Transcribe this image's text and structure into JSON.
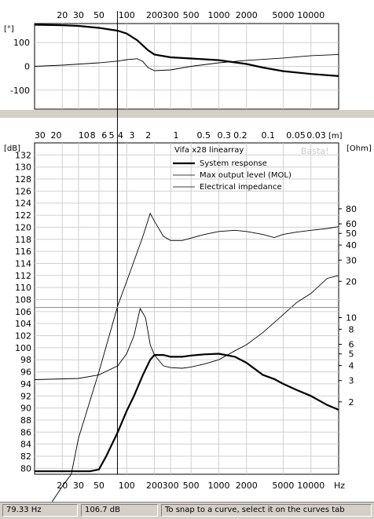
{
  "chart_data": [
    {
      "type": "line",
      "name": "phase",
      "ylabel": "[°]",
      "xscale": "log",
      "xlim": [
        10,
        20000
      ],
      "ylim": [
        -180,
        180
      ],
      "x_ticks": [
        20,
        30,
        50,
        100,
        200,
        300,
        500,
        1000,
        2000,
        5000,
        10000
      ],
      "y_ticks": [
        100,
        0,
        -100
      ],
      "grid": true,
      "series": [
        {
          "style": "thick",
          "x": [
            10,
            20,
            30,
            50,
            80,
            100,
            130,
            170,
            200,
            300,
            500,
            1000,
            2000,
            3000,
            5000,
            10000,
            20000
          ],
          "y": [
            175,
            173,
            170,
            162,
            150,
            138,
            110,
            68,
            50,
            38,
            33,
            26,
            10,
            -5,
            -20,
            -32,
            -41
          ]
        },
        {
          "style": "thin",
          "x": [
            10,
            20,
            50,
            80,
            100,
            130,
            150,
            170,
            200,
            300,
            500,
            1000,
            2000,
            5000,
            10000,
            20000
          ],
          "y": [
            0,
            5,
            15,
            22,
            28,
            32,
            20,
            -5,
            -18,
            -15,
            0,
            15,
            25,
            35,
            45,
            50
          ]
        }
      ]
    },
    {
      "type": "line",
      "name": "magnitude",
      "title": "Vifa x28 linearray",
      "watermark": "Basta!",
      "ylabel": "[dB]",
      "y2label": "[Ohm]",
      "top_axis_label": "[m]",
      "xlabel_unit": "Hz",
      "xscale": "log",
      "xlim": [
        10,
        20000
      ],
      "ylim": [
        79,
        134
      ],
      "x_ticks": [
        20,
        30,
        50,
        100,
        200,
        300,
        500,
        1000,
        2000,
        5000,
        10000
      ],
      "y_ticks": [
        132,
        130,
        128,
        126,
        124,
        122,
        120,
        118,
        116,
        114,
        112,
        110,
        108,
        106,
        104,
        102,
        100,
        98,
        96,
        94,
        92,
        90,
        88,
        86,
        84,
        82,
        80
      ],
      "top_ticks": [
        "30",
        "20",
        "10",
        "8",
        "6",
        "5",
        "4",
        "3",
        "2",
        "1",
        "0.5",
        "0.3",
        "0.2",
        "0.1",
        "0.05",
        "0.03"
      ],
      "y2_ticks": [
        "80",
        "60",
        "50",
        "40",
        "30",
        "20",
        "10",
        "8",
        "6",
        "5",
        "4",
        "3",
        "2"
      ],
      "cursor": {
        "x": 79.33,
        "y": 106.7
      },
      "series": [
        {
          "name": "System response",
          "style": "thick",
          "x": [
            10,
            40,
            50,
            60,
            80,
            100,
            120,
            150,
            180,
            200,
            250,
            300,
            400,
            500,
            700,
            1000,
            1500,
            2000,
            3000,
            4000,
            5000,
            7000,
            10000,
            15000,
            20000
          ],
          "y": [
            79.5,
            79.5,
            79.8,
            82,
            86,
            89.5,
            92,
            95.5,
            98,
            98.8,
            98.8,
            98.5,
            98.5,
            98.7,
            98.9,
            99,
            98.5,
            97.5,
            95.5,
            94.8,
            94,
            93,
            92,
            90.5,
            89.7
          ]
        },
        {
          "name": "Max output level (MOL)",
          "style": "thin",
          "x": [
            10,
            20,
            25,
            30,
            50,
            80,
            100,
            150,
            180,
            200,
            250,
            300,
            400,
            500,
            700,
            1000,
            1500,
            2000,
            3000,
            4000,
            5000,
            7000,
            10000,
            15000,
            20000
          ],
          "y": [
            70,
            77,
            79,
            85,
            96,
            107,
            111,
            118.5,
            122.3,
            121,
            118.5,
            117.8,
            117.8,
            118.2,
            118.8,
            119.3,
            119.5,
            119.3,
            118.8,
            118.3,
            118.8,
            119.2,
            119.5,
            119.8,
            120.1
          ]
        },
        {
          "name": "Electrical impedance",
          "style": "thin",
          "x": [
            10,
            30,
            50,
            80,
            100,
            120,
            140,
            160,
            180,
            200,
            250,
            300,
            400,
            500,
            700,
            1000,
            1500,
            2000,
            3000,
            5000,
            7000,
            10000,
            15000,
            20000
          ],
          "y": [
            94.7,
            94.9,
            95.5,
            97,
            99,
            102,
            106.5,
            105,
            100.5,
            98.8,
            97,
            96.7,
            96.6,
            96.8,
            97.3,
            98,
            99.5,
            100.5,
            102.5,
            105.5,
            107.5,
            109,
            111.5,
            112
          ]
        }
      ]
    }
  ],
  "status": {
    "freq": "79.33 Hz",
    "level": "106.7 dB",
    "hint": "To snap to a curve, select it on the curves tab"
  }
}
